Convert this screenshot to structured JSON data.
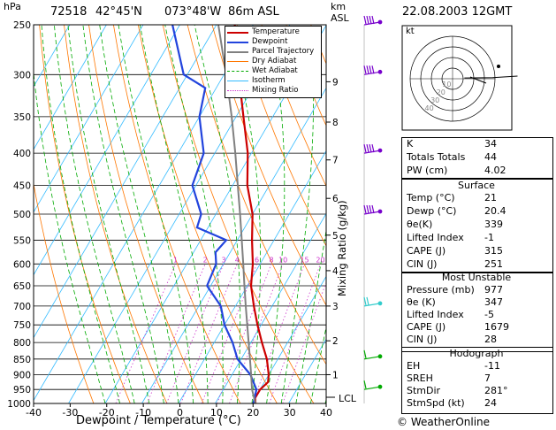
{
  "header": {
    "station": "72518",
    "lat": "42°45'N",
    "lon": "073°48'W",
    "elevation": "86m ASL",
    "datetime": "22.08.2003 12GMT",
    "pressure_unit": "hPa",
    "height_unit_1": "km",
    "height_unit_2": "ASL"
  },
  "footer": {
    "credit": "© WeatherOnline"
  },
  "hodograph_label": "kt",
  "hodograph_rings": [
    "10",
    "20",
    "30",
    "40"
  ],
  "hodograph_wind": [
    {
      "dir": 220,
      "spd": 5
    },
    {
      "dir": 250,
      "spd": 15
    },
    {
      "dir": 240,
      "spd": 25
    }
  ],
  "mixing_ratio_label": "Mixing Ratio (g/kg)",
  "lcl_label": "LCL",
  "indices": {
    "k_label": "K",
    "k": "34",
    "tt_label": "Totals Totals",
    "tt": "44",
    "pw_label": "PW (cm)",
    "pw": "4.02",
    "surface_header": "Surface",
    "temp_label": "Temp (°C)",
    "temp": "21",
    "dewp_label": "Dewp (°C)",
    "dewp": "20.4",
    "theta_label": "θe(K)",
    "theta": "339",
    "li_label": "Lifted Index",
    "li": "-1",
    "cape_label": "CAPE (J)",
    "cape": "315",
    "cin_label": "CIN (J)",
    "cin": "251",
    "mu_header": "Most Unstable",
    "mu_press_label": "Pressure (mb)",
    "mu_press": "977",
    "mu_theta_label": "θe (K)",
    "mu_theta": "347",
    "mu_li_label": "Lifted Index",
    "mu_li": "-5",
    "mu_cape_label": "CAPE (J)",
    "mu_cape": "1679",
    "mu_cin_label": "CIN (J)",
    "mu_cin": "28",
    "hodo_header": "Hodograph",
    "eh_label": "EH",
    "eh": "-11",
    "sreh_label": "SREH",
    "sreh": "7",
    "stmdir_label": "StmDir",
    "stmdir": "281°",
    "stmspd_label": "StmSpd (kt)",
    "stmspd": "24"
  },
  "chart_data": {
    "type": "line",
    "title": "72518 42°45'N 073°48'W 86m ASL",
    "xlabel": "Dewpoint / Temperature (°C)",
    "ylabel": "hPa",
    "x_ticks": [
      "-40",
      "-30",
      "-20",
      "-10",
      "0",
      "10",
      "20",
      "30",
      "40"
    ],
    "xlim": [
      -40,
      40
    ],
    "pressure_levels": [
      "250",
      "300",
      "350",
      "400",
      "450",
      "500",
      "550",
      "600",
      "650",
      "700",
      "750",
      "800",
      "850",
      "900",
      "950",
      "1000"
    ],
    "ylim": [
      1000,
      250
    ],
    "y_scale": "log",
    "km_ticks": [
      {
        "km": "1",
        "p": 900
      },
      {
        "km": "2",
        "p": 795
      },
      {
        "km": "3",
        "p": 700
      },
      {
        "km": "4",
        "p": 615
      },
      {
        "km": "5",
        "p": 540
      },
      {
        "km": "6",
        "p": 472
      },
      {
        "km": "7",
        "p": 410
      },
      {
        "km": "8",
        "p": 357
      },
      {
        "km": "9",
        "p": 308
      }
    ],
    "mixing_ratio_values": [
      "1",
      "2",
      "3",
      "4",
      "6",
      "8",
      "10",
      "15",
      "20",
      "25"
    ],
    "legend": [
      "Temperature",
      "Dewpoint",
      "Parcel Trajectory",
      "Dry Adiabat",
      "Wet Adiabat",
      "Isotherm",
      "Mixing Ratio"
    ],
    "legend_colors": [
      "#cc0000",
      "#2244dd",
      "#808080",
      "#ff7700",
      "#00aa00",
      "#33bbff",
      "#cc33cc"
    ],
    "series": [
      {
        "name": "Temperature",
        "color": "#cc0000",
        "points": [
          {
            "p": 1000,
            "t": 21
          },
          {
            "p": 980,
            "t": 20
          },
          {
            "p": 950,
            "t": 20
          },
          {
            "p": 925,
            "t": 21
          },
          {
            "p": 900,
            "t": 20
          },
          {
            "p": 850,
            "t": 17
          },
          {
            "p": 800,
            "t": 13
          },
          {
            "p": 750,
            "t": 9
          },
          {
            "p": 700,
            "t": 5
          },
          {
            "p": 650,
            "t": 1
          },
          {
            "p": 600,
            "t": -2
          },
          {
            "p": 550,
            "t": -6
          },
          {
            "p": 500,
            "t": -10
          },
          {
            "p": 450,
            "t": -16
          },
          {
            "p": 400,
            "t": -21
          },
          {
            "p": 350,
            "t": -28
          },
          {
            "p": 300,
            "t": -36
          },
          {
            "p": 250,
            "t": -45
          }
        ]
      },
      {
        "name": "Dewpoint",
        "color": "#2244dd",
        "points": [
          {
            "p": 1000,
            "t": 20.4
          },
          {
            "p": 950,
            "t": 19
          },
          {
            "p": 900,
            "t": 15
          },
          {
            "p": 850,
            "t": 9
          },
          {
            "p": 800,
            "t": 5
          },
          {
            "p": 750,
            "t": 0
          },
          {
            "p": 700,
            "t": -4
          },
          {
            "p": 650,
            "t": -11
          },
          {
            "p": 600,
            "t": -12
          },
          {
            "p": 575,
            "t": -14
          },
          {
            "p": 550,
            "t": -13
          },
          {
            "p": 525,
            "t": -23
          },
          {
            "p": 500,
            "t": -24
          },
          {
            "p": 450,
            "t": -31
          },
          {
            "p": 400,
            "t": -33
          },
          {
            "p": 350,
            "t": -40
          },
          {
            "p": 315,
            "t": -43
          },
          {
            "p": 300,
            "t": -51
          },
          {
            "p": 250,
            "t": -62
          }
        ]
      },
      {
        "name": "Parcel Trajectory",
        "color": "#808080",
        "points": [
          {
            "p": 1000,
            "t": 21
          },
          {
            "p": 950,
            "t": 17.8
          },
          {
            "p": 900,
            "t": 15.2
          },
          {
            "p": 850,
            "t": 12.4
          },
          {
            "p": 800,
            "t": 9.4
          },
          {
            "p": 750,
            "t": 6.2
          },
          {
            "p": 700,
            "t": 2.8
          },
          {
            "p": 650,
            "t": -0.8
          },
          {
            "p": 600,
            "t": -4.6
          },
          {
            "p": 550,
            "t": -8.8
          },
          {
            "p": 500,
            "t": -13.4
          },
          {
            "p": 450,
            "t": -18.6
          },
          {
            "p": 400,
            "t": -24.4
          },
          {
            "p": 350,
            "t": -31.2
          },
          {
            "p": 300,
            "t": -39.4
          },
          {
            "p": 250,
            "t": -49.5
          }
        ]
      }
    ],
    "wind_barbs": [
      {
        "p": 950,
        "color": "#00aa00"
      },
      {
        "p": 850,
        "color": "#00aa00"
      },
      {
        "p": 700,
        "color": "#33cccc"
      },
      {
        "p": 500,
        "color": "#7700cc"
      },
      {
        "p": 400,
        "color": "#7700cc"
      },
      {
        "p": 300,
        "color": "#7700cc"
      },
      {
        "p": 250,
        "color": "#7700cc"
      }
    ]
  }
}
